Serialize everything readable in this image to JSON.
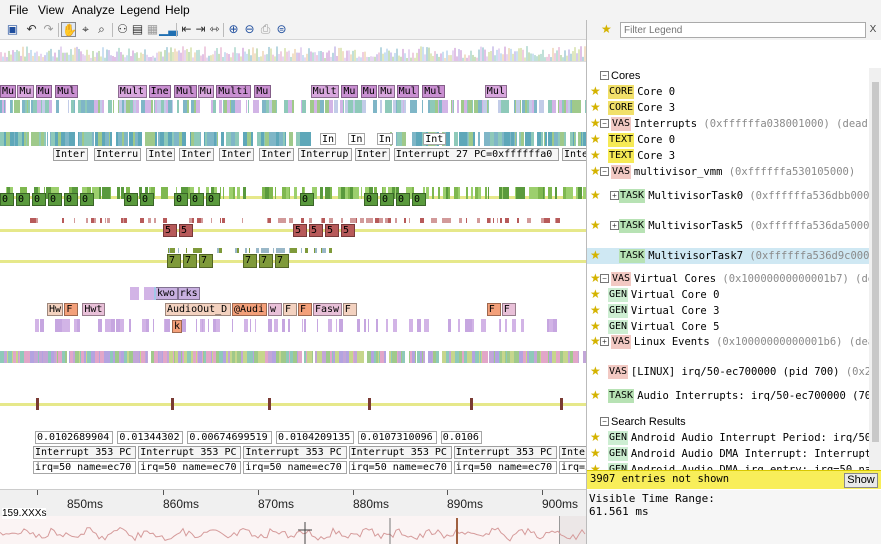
{
  "menu": [
    "File",
    "View",
    "Analyze",
    "Legend",
    "Help"
  ],
  "toolbar_icons": [
    "save-icon",
    "undo-icon",
    "redo-icon",
    "hand-pan-icon",
    "pointer-icon",
    "zoom-icon",
    "binoculars-icon",
    "find-icon",
    "grid-icon",
    "chart-icon",
    "collapse-icon",
    "expand-icon",
    "fit-icon",
    "zoom-in-icon",
    "zoom-out-icon",
    "print-icon",
    "zoom-fit-icon"
  ],
  "legend_filter": {
    "placeholder": "Filter Legend",
    "clear": "X"
  },
  "legend": [
    {
      "type": "group",
      "label": "Cores"
    },
    {
      "tag": "CORE",
      "name": "Core 0",
      "addr": ""
    },
    {
      "tag": "CORE",
      "name": "Core 3",
      "addr": ""
    },
    {
      "tag": "VAS",
      "name": "Interrupts",
      "addr": "(0xffffffa038001000) (dead)"
    },
    {
      "tag": "TEXT",
      "name": "Core 0",
      "addr": ""
    },
    {
      "tag": "TEXT",
      "name": "Core 3",
      "addr": ""
    },
    {
      "tag": "VAS",
      "name": "multivisor_vmm",
      "addr": "(0xffffffa530105000)"
    },
    {
      "tag": "TASK",
      "name": "MultivisorTask0",
      "addr": "(0xffffffa536dbb000)"
    },
    {
      "tag": "TASK",
      "name": "MultivisorTask5",
      "addr": "(0xffffffa536da5000)"
    },
    {
      "tag": "TASK",
      "name": "MultivisorTask7",
      "addr": "(0xffffffa536d9c000)"
    },
    {
      "tag": "VAS",
      "name": "Virtual Cores",
      "addr": "(0x10000000000001b7) (dea"
    },
    {
      "tag": "GEN",
      "name": "Virtual Core 0",
      "addr": ""
    },
    {
      "tag": "GEN",
      "name": "Virtual Core 3",
      "addr": ""
    },
    {
      "tag": "GEN",
      "name": "Virtual Core 5",
      "addr": ""
    },
    {
      "tag": "VAS",
      "name": "Linux Events",
      "addr": "(0x10000000000001b6) (dead"
    },
    {
      "tag": "VAS",
      "name": "[LINUX] irq/50-ec700000 (pid 700)",
      "addr": "(0x20"
    },
    {
      "tag": "TASK",
      "name": "Audio Interrupts: irq/50-ec700000 (700",
      "addr": ""
    },
    {
      "type": "group",
      "label": "Search Results"
    },
    {
      "tag": "GEN",
      "name": "Android Audio Interrupt Period: irq/50",
      "addr": ""
    },
    {
      "tag": "GEN",
      "name": "Android Audio DMA Interrupt: Interrupt 353",
      "addr": ""
    },
    {
      "tag": "GEN",
      "name": "Android Audio DMA irq entry: irq=50 na",
      "addr": ""
    }
  ],
  "hidden_entries": "3907 entries not shown",
  "show_button": "Show",
  "visible_time_range_label": "Visible Time Range:",
  "visible_time_range_value": "61.561 ms",
  "ruler": {
    "labels": [
      "850ms",
      "860ms",
      "870ms",
      "880ms",
      "890ms",
      "900ms"
    ],
    "overview_text": "159.XXXs"
  },
  "trace_text": {
    "row_multi": [
      "Mu",
      "Mu",
      "Mu",
      "Mul",
      "Mult",
      "Ine",
      "Mul",
      "Mu",
      "Multi",
      "Mu",
      "Mult",
      "Mu",
      "Mu",
      "Mu",
      "Mul",
      "Mul",
      "Mul"
    ],
    "row_int_small": [
      "In",
      "In",
      "In",
      "Int"
    ],
    "row_interrupt": [
      "Inter",
      "Interru",
      "Inte",
      "Inter",
      "Inter",
      "Inter",
      "Interrup",
      "Inter",
      "Interrupt 27 PC=0xffffffa0",
      "Interru"
    ],
    "row_zero": [
      "0",
      "0",
      "0",
      "0",
      "0",
      "0",
      "0",
      "0",
      "0",
      "0",
      "0",
      "0",
      "0",
      "0",
      "0",
      "0"
    ],
    "row_five": [
      "5",
      "5",
      "5",
      "5",
      "5",
      "5"
    ],
    "row_seven": [
      "7",
      "7",
      "7",
      "7",
      "7",
      "7"
    ],
    "row_kwork": [
      "kwo",
      "rks"
    ],
    "row_audio": [
      "Hw",
      "F",
      "Hwt",
      "AudioOut_D",
      "@Audi",
      "w",
      "F",
      "F",
      "Fasw",
      "F",
      "F",
      "F",
      "Au",
      "F"
    ],
    "row_k": "k",
    "values": [
      "0.0102689904",
      "0.01344302",
      "0.00674699519",
      "0.0104209135",
      "0.0107310096",
      "0.0106"
    ],
    "interrupts": [
      "Interrupt 353 PC",
      "Interrupt 353 PC",
      "Interrupt 353 PC",
      "Interrupt 353 PC",
      "Interrupt 353 PC",
      "Interrupt 353 PC"
    ],
    "irqs": [
      "irq=50 name=ec70",
      "irq=50 name=ec70",
      "irq=50 name=ec70",
      "irq=50 name=ec70",
      "irq=50 name=ec70",
      "irq=50 name=ec70"
    ]
  },
  "colors": {
    "multi": "#c98fd1",
    "interrupt_stripe": "#5ea7b9",
    "green": "#5a9a3d",
    "yellow_bar": "#e6e88a",
    "five": "#b75a5a",
    "seven": "#7f9a3a",
    "audio": "#f3a07a"
  }
}
